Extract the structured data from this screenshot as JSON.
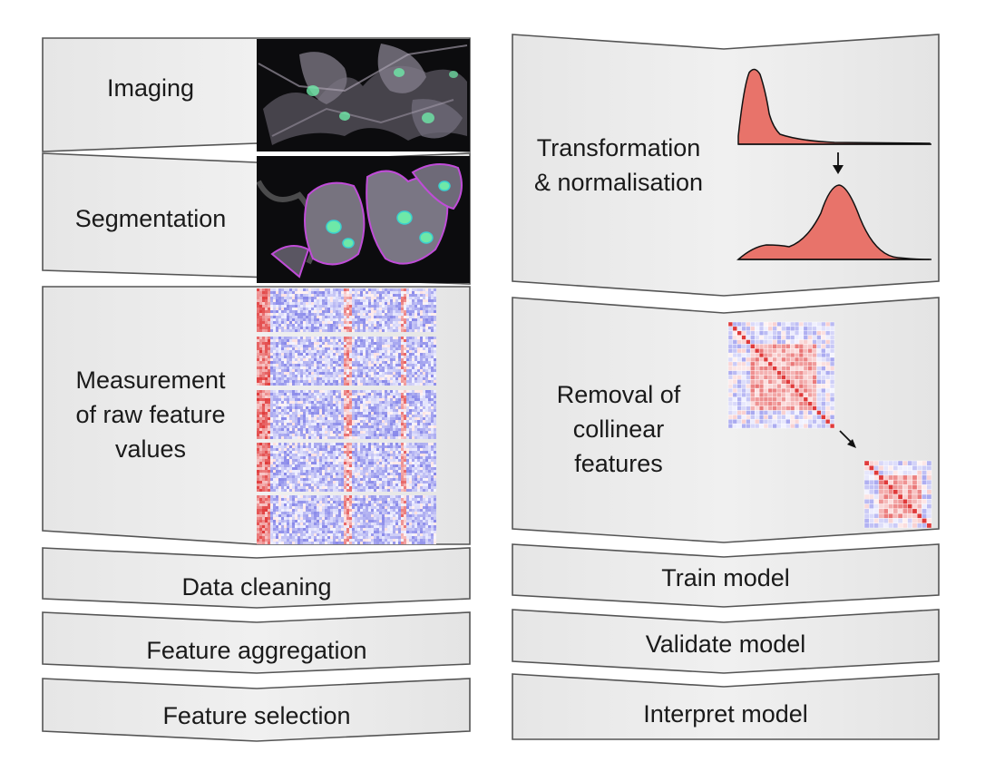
{
  "left_column": {
    "steps": [
      {
        "label": "Imaging"
      },
      {
        "label": "Segmentation"
      },
      {
        "label_lines": [
          "Measurement",
          "of raw feature",
          "values"
        ]
      },
      {
        "label": "Data cleaning"
      },
      {
        "label": "Feature aggregation"
      },
      {
        "label": "Feature selection"
      }
    ]
  },
  "right_column": {
    "steps": [
      {
        "label_lines": [
          "Transformation",
          "& normalisation"
        ]
      },
      {
        "label_lines": [
          "Removal of",
          "collinear",
          "features"
        ]
      },
      {
        "label": "Train model"
      },
      {
        "label": "Validate model"
      },
      {
        "label": "Interpret model"
      }
    ]
  },
  "colors": {
    "panel_fill": "#eeeeee",
    "panel_stroke": "#555555",
    "distribution_fill": "#e8736a",
    "heatmap_low": "#5a5ae0",
    "heatmap_high": "#e03a3a"
  }
}
